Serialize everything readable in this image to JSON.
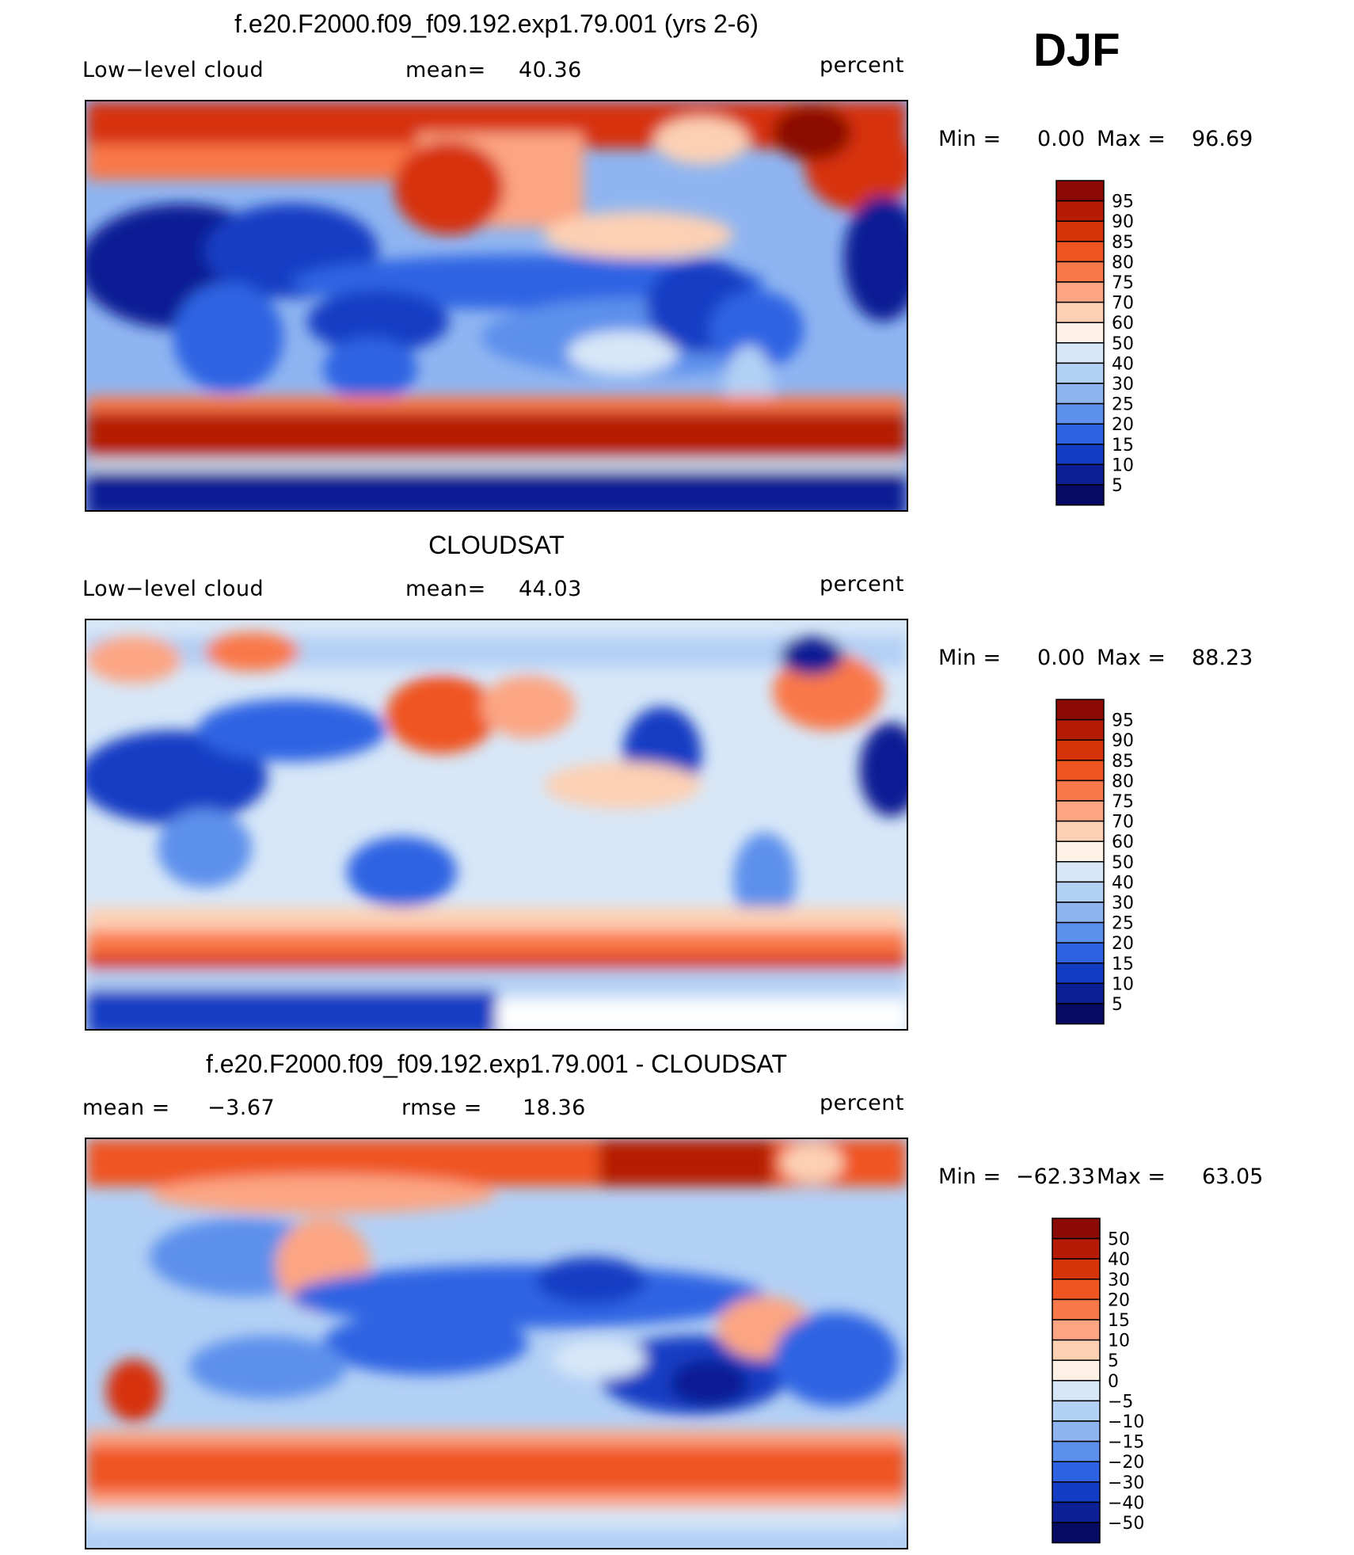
{
  "season": "DJF",
  "panels": [
    {
      "title": "f.e20.F2000.f09_f09.192.exp1.79.001 (yrs 2-6)",
      "left_label": "Low−level cloud",
      "mid_label": "mean=",
      "mid_value": "40.36",
      "units": "percent",
      "minmax": {
        "min_label": "Min =",
        "min_value": "0.00",
        "max_label": "Max =",
        "max_value": "96.69"
      },
      "levels": [
        "95",
        "90",
        "85",
        "80",
        "75",
        "70",
        "60",
        "50",
        "40",
        "30",
        "25",
        "20",
        "15",
        "10",
        "5"
      ],
      "colors": [
        "#8b0a05",
        "#b51b05",
        "#d73309",
        "#ef5521",
        "#f9784a",
        "#fca583",
        "#fdd0b4",
        "#fdf0e4",
        "#d7e7f8",
        "#b3d0f5",
        "#8fb5f1",
        "#5d90ec",
        "#2d63e3",
        "#123cc4",
        "#0c1f94",
        "#060a63"
      ]
    },
    {
      "title": "CLOUDSAT",
      "left_label": "Low−level cloud",
      "mid_label": "mean=",
      "mid_value": "44.03",
      "units": "percent",
      "minmax": {
        "min_label": "Min =",
        "min_value": "0.00",
        "max_label": "Max =",
        "max_value": "88.23"
      },
      "levels": [
        "95",
        "90",
        "85",
        "80",
        "75",
        "70",
        "60",
        "50",
        "40",
        "30",
        "25",
        "20",
        "15",
        "10",
        "5"
      ],
      "colors": [
        "#8b0a05",
        "#b51b05",
        "#d73309",
        "#ef5521",
        "#f9784a",
        "#fca583",
        "#fdd0b4",
        "#fdf0e4",
        "#d7e7f8",
        "#b3d0f5",
        "#8fb5f1",
        "#5d90ec",
        "#2d63e3",
        "#123cc4",
        "#0c1f94",
        "#060a63"
      ]
    },
    {
      "title": "f.e20.F2000.f09_f09.192.exp1.79.001 - CLOUDSAT",
      "left_label": "mean =",
      "left_value": "−3.67",
      "mid_label": "rmse =",
      "mid_value": "18.36",
      "units": "percent",
      "minmax": {
        "min_label": "Min =",
        "min_value": "−62.33",
        "max_label": "Max =",
        "max_value": "63.05"
      },
      "levels": [
        "50",
        "40",
        "30",
        "20",
        "15",
        "10",
        "5",
        "0",
        "−5",
        "−10",
        "−15",
        "−20",
        "−30",
        "−40",
        "−50"
      ],
      "colors": [
        "#8b0a05",
        "#b51b05",
        "#d73309",
        "#ef5521",
        "#f9784a",
        "#fca583",
        "#fdd0b4",
        "#fdf0e4",
        "#d7e7f8",
        "#b3d0f5",
        "#8fb5f1",
        "#5d90ec",
        "#2d63e3",
        "#123cc4",
        "#0c1f94",
        "#060a63"
      ]
    }
  ]
}
